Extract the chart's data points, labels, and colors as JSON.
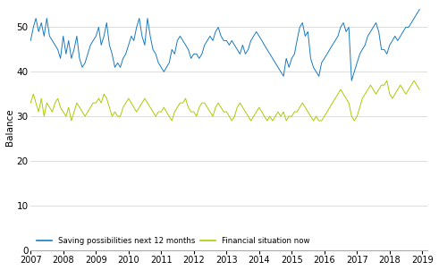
{
  "ylabel": "Balance",
  "ylim": [
    0,
    55
  ],
  "yticks": [
    0,
    10,
    20,
    30,
    40,
    50
  ],
  "xtick_years": [
    2007,
    2008,
    2009,
    2010,
    2011,
    2012,
    2013,
    2014,
    2015,
    2016,
    2017,
    2018,
    2019
  ],
  "color_saving": "#1a7abf",
  "color_financial": "#aacc00",
  "legend_labels": [
    "Saving possibilities next 12 months",
    "Financial situation now"
  ],
  "saving": [
    47,
    50,
    52,
    49,
    51,
    48,
    52,
    48,
    47,
    46,
    45,
    43,
    48,
    44,
    47,
    43,
    45,
    48,
    43,
    41,
    42,
    44,
    46,
    47,
    48,
    50,
    46,
    48,
    51,
    46,
    44,
    41,
    42,
    41,
    43,
    44,
    46,
    48,
    47,
    50,
    52,
    48,
    46,
    52,
    48,
    45,
    44,
    42,
    41,
    40,
    41,
    42,
    45,
    44,
    47,
    48,
    47,
    46,
    45,
    43,
    44,
    44,
    43,
    44,
    46,
    47,
    48,
    47,
    49,
    50,
    48,
    47,
    47,
    46,
    47,
    46,
    45,
    44,
    46,
    44,
    45,
    47,
    48,
    49,
    48,
    47,
    46,
    45,
    44,
    43,
    42,
    41,
    40,
    39,
    43,
    41,
    43,
    44,
    47,
    50,
    51,
    48,
    49,
    43,
    41,
    40,
    39,
    42,
    43,
    44,
    45,
    46,
    47,
    48,
    50,
    51,
    49,
    50,
    38,
    40,
    42,
    44,
    45,
    46,
    48,
    49,
    50,
    51,
    49,
    45,
    45,
    44,
    46,
    47,
    48,
    47,
    48,
    49,
    50,
    50,
    51,
    52,
    53,
    54
  ],
  "financial": [
    33,
    35,
    33,
    31,
    34,
    30,
    33,
    32,
    31,
    33,
    34,
    32,
    31,
    30,
    32,
    29,
    31,
    33,
    32,
    31,
    30,
    31,
    32,
    33,
    33,
    34,
    33,
    35,
    34,
    32,
    30,
    31,
    30,
    30,
    32,
    33,
    34,
    33,
    32,
    31,
    32,
    33,
    34,
    33,
    32,
    31,
    30,
    31,
    31,
    32,
    31,
    30,
    29,
    31,
    32,
    33,
    33,
    34,
    32,
    31,
    31,
    30,
    32,
    33,
    33,
    32,
    31,
    30,
    32,
    33,
    32,
    31,
    31,
    30,
    29,
    30,
    32,
    33,
    32,
    31,
    30,
    29,
    30,
    31,
    32,
    31,
    30,
    29,
    30,
    29,
    30,
    31,
    30,
    31,
    29,
    30,
    30,
    31,
    31,
    32,
    33,
    32,
    31,
    30,
    29,
    30,
    29,
    29,
    30,
    31,
    32,
    33,
    34,
    35,
    36,
    35,
    34,
    33,
    30,
    29,
    30,
    32,
    34,
    35,
    36,
    37,
    36,
    35,
    36,
    37,
    37,
    38,
    35,
    34,
    35,
    36,
    37,
    36,
    35,
    36,
    37,
    38,
    37,
    36
  ]
}
